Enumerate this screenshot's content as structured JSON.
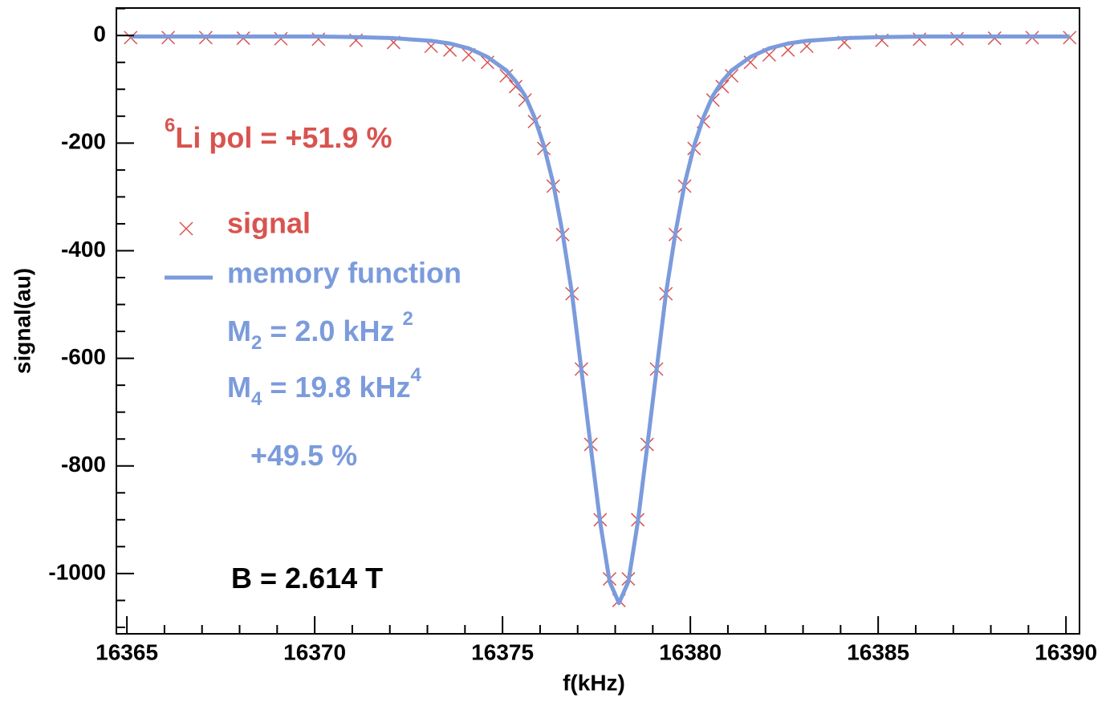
{
  "chart_data": {
    "type": "scatter-line",
    "x_label": "f(kHz)",
    "y_label": "signal(au)",
    "xlim": [
      16364.72,
      16390.36
    ],
    "ylim": [
      -1112,
      51
    ],
    "xticks": [
      16365,
      16370,
      16375,
      16380,
      16385,
      16390
    ],
    "yticks": [
      0,
      -200,
      -400,
      -600,
      -800,
      -1000
    ],
    "xminorticks": [
      16366,
      16367,
      16368,
      16369,
      16371,
      16372,
      16373,
      16374,
      16376,
      16377,
      16378,
      16379,
      16381,
      16382,
      16383,
      16384,
      16386,
      16387,
      16388,
      16389
    ],
    "yminorticks": [
      50,
      -50,
      -100,
      -150,
      -250,
      -300,
      -350,
      -450,
      -500,
      -550,
      -650,
      -700,
      -750,
      -850,
      -900,
      -950,
      -1050,
      -1100
    ],
    "series": [
      {
        "name": "signal",
        "color": "#d9534f",
        "marker": "x",
        "x": [
          16365.1,
          16366.1,
          16367.1,
          16368.1,
          16369.1,
          16370.1,
          16371.1,
          16372.1,
          16373.1,
          16373.6,
          16374.1,
          16374.6,
          16375.1,
          16375.35,
          16375.6,
          16375.85,
          16376.1,
          16376.35,
          16376.6,
          16376.85,
          16377.1,
          16377.35,
          16377.6,
          16377.85,
          16378.1,
          16378.35,
          16378.6,
          16378.85,
          16379.1,
          16379.35,
          16379.6,
          16379.85,
          16380.1,
          16380.35,
          16380.6,
          16380.85,
          16381.1,
          16381.6,
          16382.1,
          16382.6,
          16383.1,
          16384.1,
          16385.1,
          16386.1,
          16387.1,
          16388.1,
          16389.1,
          16390.1
        ],
        "values": [
          -4,
          -4,
          -4,
          -5,
          -6,
          -7,
          -9,
          -13,
          -20,
          -27,
          -36,
          -50,
          -75,
          -95,
          -120,
          -160,
          -210,
          -280,
          -370,
          -480,
          -620,
          -760,
          -900,
          -1010,
          -1050,
          -1010,
          -900,
          -760,
          -620,
          -480,
          -370,
          -280,
          -210,
          -160,
          -120,
          -95,
          -75,
          -50,
          -36,
          -27,
          -20,
          -13,
          -9,
          -7,
          -6,
          -5,
          -4,
          -4
        ]
      },
      {
        "name": "memory function",
        "color": "#7b9bdc",
        "marker": "line",
        "x": [
          16365.1,
          16366.1,
          16367.1,
          16368.1,
          16369.1,
          16370.1,
          16371.1,
          16372.1,
          16373.1,
          16373.6,
          16374.1,
          16374.6,
          16375.1,
          16375.35,
          16375.6,
          16375.85,
          16376.1,
          16376.35,
          16376.6,
          16376.85,
          16377.1,
          16377.35,
          16377.6,
          16377.85,
          16378.1,
          16378.35,
          16378.6,
          16378.85,
          16379.1,
          16379.35,
          16379.6,
          16379.85,
          16380.1,
          16380.35,
          16380.6,
          16380.85,
          16381.1,
          16381.6,
          16382.1,
          16382.6,
          16383.1,
          16384.1,
          16385.1,
          16386.1,
          16387.1,
          16388.1,
          16389.1,
          16390.1
        ],
        "values": [
          -2,
          -2,
          -2,
          -2,
          -2,
          -2,
          -3,
          -5,
          -10,
          -15,
          -24,
          -40,
          -65,
          -85,
          -112,
          -152,
          -205,
          -275,
          -368,
          -480,
          -622,
          -765,
          -905,
          -1015,
          -1055,
          -1015,
          -905,
          -765,
          -622,
          -480,
          -368,
          -275,
          -205,
          -152,
          -112,
          -85,
          -65,
          -40,
          -24,
          -15,
          -10,
          -5,
          -3,
          -2,
          -2,
          -2,
          -2,
          -2
        ]
      }
    ],
    "annotations": [
      {
        "color": "#d9534f",
        "parts": [
          {
            "text": "6",
            "shift": "sup"
          },
          {
            "text": "Li pol = +51.9 %"
          }
        ]
      },
      {
        "color": "#7b9bdc",
        "parts": [
          {
            "text": "M"
          },
          {
            "text": "2",
            "shift": "sub"
          },
          {
            "text": " = 2.0 kHz "
          },
          {
            "text": "2",
            "shift": "sup"
          }
        ]
      },
      {
        "color": "#7b9bdc",
        "parts": [
          {
            "text": "M"
          },
          {
            "text": "4",
            "shift": "sub"
          },
          {
            "text": " = 19.8 kHz"
          },
          {
            "text": "4",
            "shift": "sup"
          }
        ]
      },
      {
        "color": "#7b9bdc",
        "parts": [
          {
            "text": "+49.5 %"
          }
        ]
      },
      {
        "color": "#000000",
        "parts": [
          {
            "text": "B = 2.614 T"
          }
        ]
      }
    ]
  }
}
